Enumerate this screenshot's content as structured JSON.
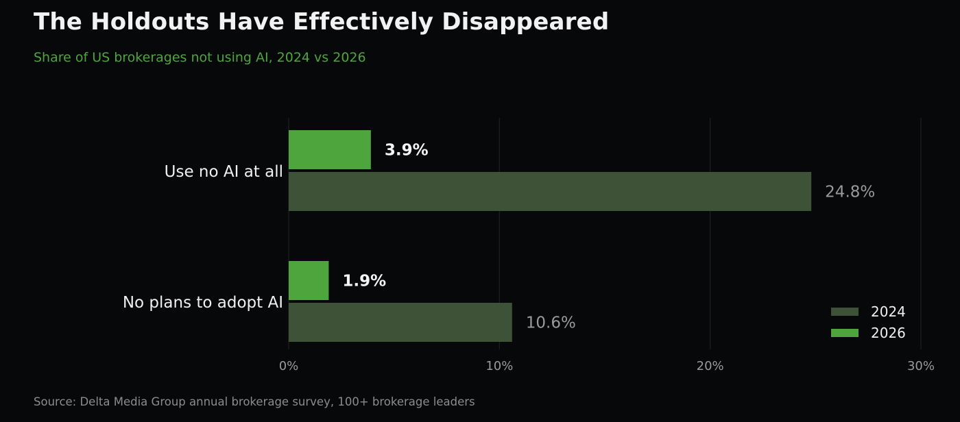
{
  "title": "The Holdouts Have Effectively Disappeared",
  "subtitle": "Share of US brokerages not using AI, 2024 vs 2026",
  "source": "Source: Delta Media Group annual brokerage survey, 100+ brokerage leaders",
  "colors": {
    "background": "#07080a",
    "series_2024": "#3d5236",
    "series_2026": "#4ea53e",
    "subtitle": "#4ea53e",
    "grid": "#1e1f22"
  },
  "chart_data": {
    "type": "bar",
    "orientation": "horizontal",
    "title": "The Holdouts Have Effectively Disappeared",
    "subtitle": "Share of US brokerages not using AI, 2024 vs 2026",
    "categories": [
      "Use no AI at all",
      "No plans to adopt AI"
    ],
    "series": [
      {
        "name": "2026",
        "values": [
          3.9,
          1.9
        ],
        "labels": [
          "3.9%",
          "1.9%"
        ],
        "color": "#4ea53e"
      },
      {
        "name": "2024",
        "values": [
          24.8,
          10.6
        ],
        "labels": [
          "24.8%",
          "10.6%"
        ],
        "color": "#3d5236"
      }
    ],
    "xlim": [
      0,
      30
    ],
    "xticks": [
      0,
      10,
      20,
      30
    ],
    "xtick_labels": [
      "0%",
      "10%",
      "20%",
      "30%"
    ],
    "xlabel": "",
    "ylabel": "",
    "grid": "vertical",
    "legend": {
      "placement": "bottom-right",
      "entries": [
        "2024",
        "2026"
      ]
    }
  }
}
